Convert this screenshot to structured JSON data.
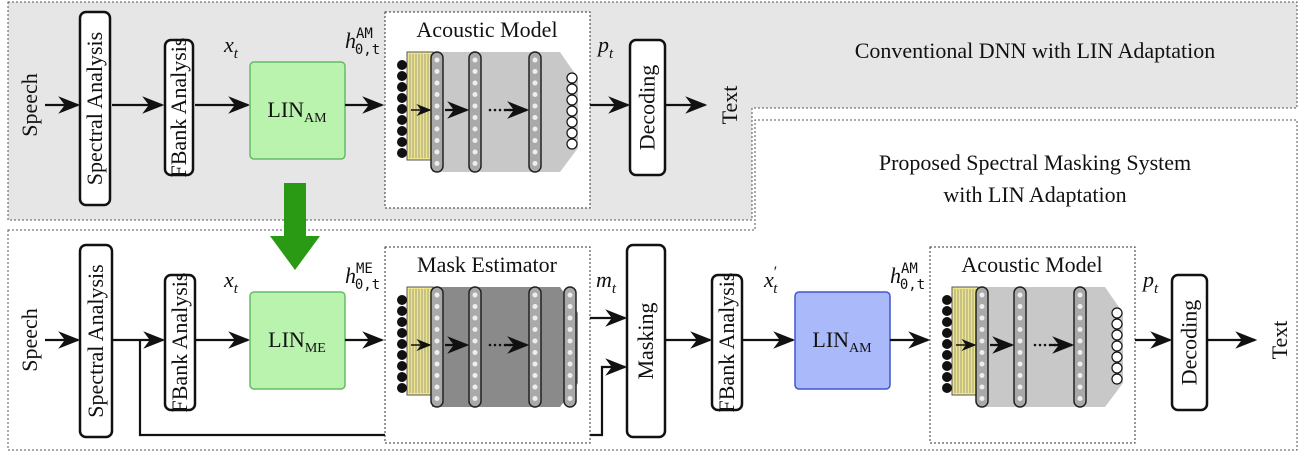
{
  "top": {
    "title": "Conventional DNN with LIN Adaptation",
    "speech": "Speech",
    "spectral": "Spectral Analysis",
    "fbank": "FBank Analysis",
    "x": {
      "base": "x",
      "sub": "t"
    },
    "lin": {
      "base": "LIN",
      "sub": "AM"
    },
    "h": {
      "base": "h",
      "sup": "AM",
      "sub": "0,t"
    },
    "model": "Acoustic Model",
    "p": {
      "base": "p",
      "sub": "t"
    },
    "decoding": "Decoding",
    "text": "Text"
  },
  "bottom": {
    "title_lines": [
      "Proposed Spectral Masking System",
      "with LIN Adaptation"
    ],
    "speech": "Speech",
    "spectral": "Spectral Analysis",
    "fbank": "FBank Analysis",
    "x": {
      "base": "x",
      "sub": "t"
    },
    "lin": {
      "base": "LIN",
      "sub": "ME"
    },
    "h": {
      "base": "h",
      "sup": "ME",
      "sub": "0,t"
    },
    "model": "Mask Estimator",
    "m": {
      "base": "m",
      "sub": "t"
    },
    "masking": "Masking",
    "fbank2": "FBank Analysis",
    "x2": {
      "base": "x",
      "sup": "′",
      "sub": "t"
    },
    "lin2": {
      "base": "LIN",
      "sub": "AM"
    },
    "h2": {
      "base": "h",
      "sup": "AM",
      "sub": "0,t"
    },
    "model2": "Acoustic Model",
    "p": {
      "base": "p",
      "sub": "t"
    },
    "decoding": "Decoding",
    "text": "Text"
  }
}
